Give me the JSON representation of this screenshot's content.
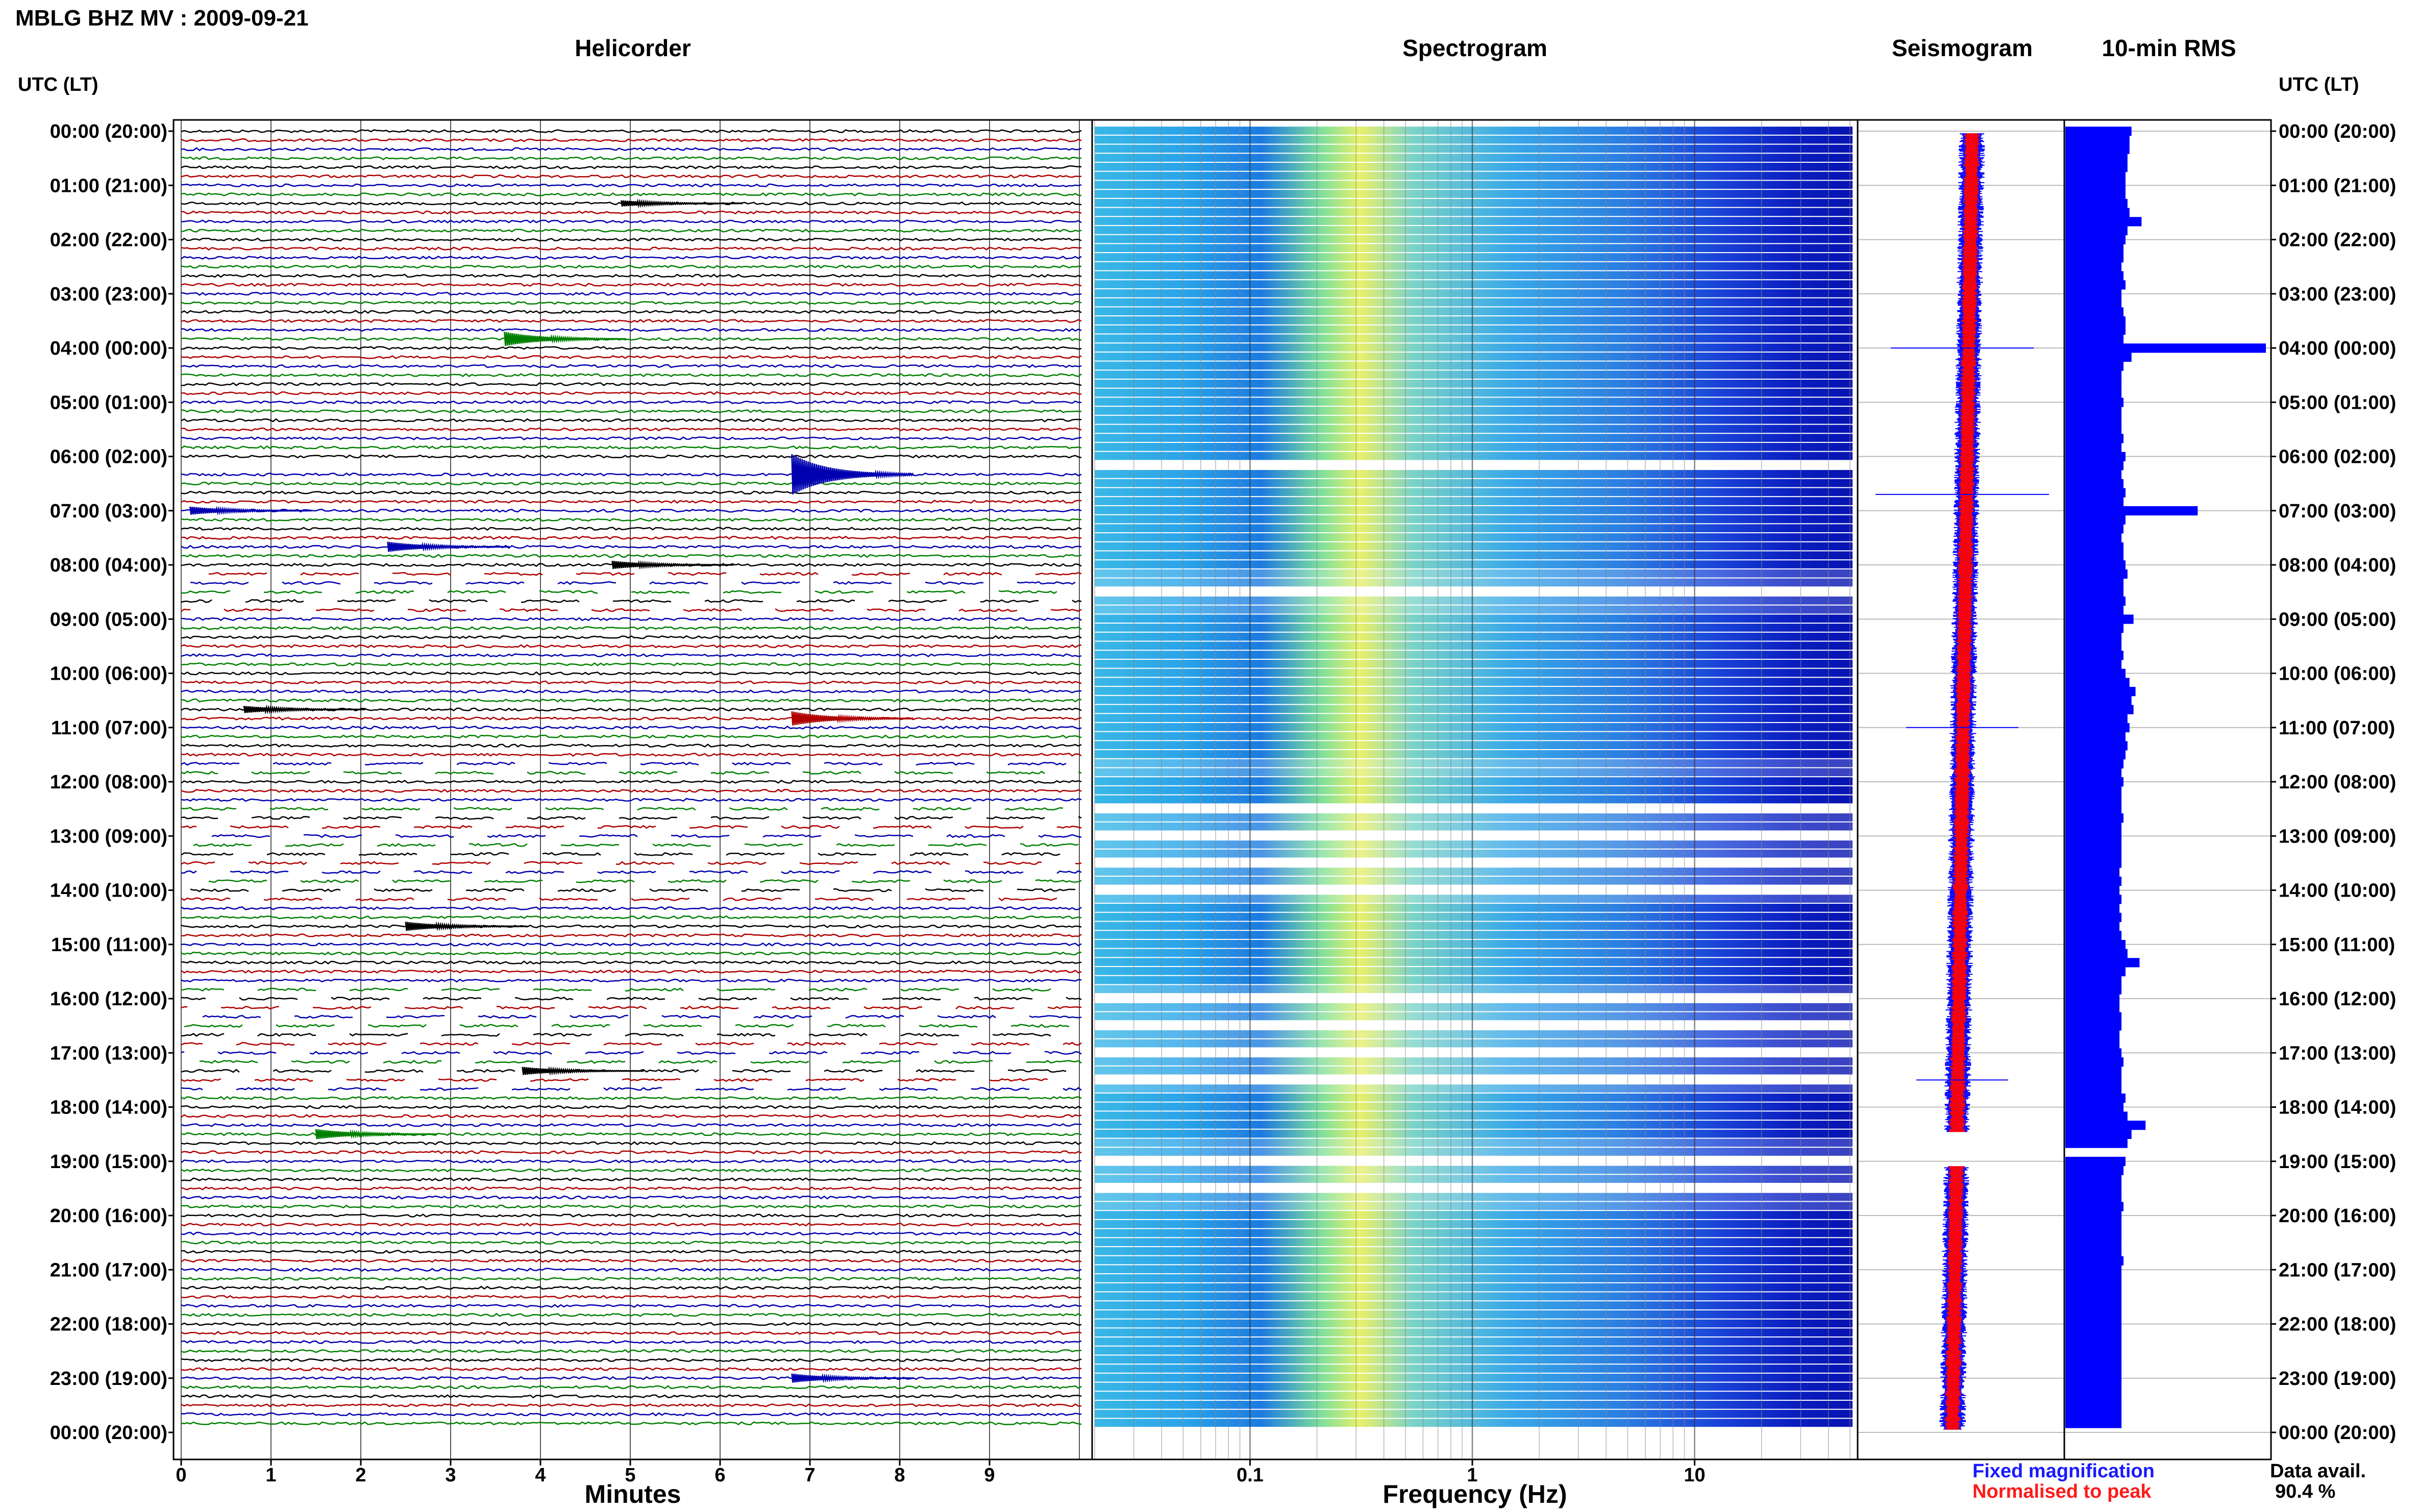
{
  "figure_title": "MBLG BHZ MV : 2009-09-21",
  "utc_label_left": "UTC (LT)",
  "utc_label_right": "UTC (LT)",
  "legend": {
    "fixed": "Fixed magnification",
    "normalised": "Normalised to peak"
  },
  "data_avail": {
    "label": "Data avail.",
    "value": "90.4 %"
  },
  "colors": {
    "trace_black": "#000000",
    "trace_red": "#b00000",
    "trace_blue": "#0000b0",
    "trace_green": "#008000",
    "rms_bar": "#0000ff",
    "seis_fixed": "#0000ff",
    "seis_norm": "#ff0000"
  },
  "chart_data": [
    {
      "type": "line",
      "title": "Helicorder",
      "xlabel": "Minutes",
      "xlim": [
        0,
        10
      ],
      "x_ticks": [
        0,
        1,
        2,
        3,
        4,
        5,
        6,
        7,
        8,
        9
      ],
      "rows": 144,
      "row_colors_cycle": [
        "black",
        "red",
        "blue",
        "green"
      ],
      "y_ticks": [
        "00:00 (20:00)",
        "01:00 (21:00)",
        "02:00 (22:00)",
        "03:00 (23:00)",
        "04:00 (00:00)",
        "05:00 (01:00)",
        "06:00 (02:00)",
        "07:00 (03:00)",
        "08:00 (04:00)",
        "09:00 (05:00)",
        "10:00 (06:00)",
        "11:00 (07:00)",
        "12:00 (08:00)",
        "13:00 (09:00)",
        "14:00 (10:00)",
        "15:00 (11:00)",
        "16:00 (12:00)",
        "17:00 (13:00)",
        "18:00 (14:00)",
        "19:00 (15:00)",
        "20:00 (16:00)",
        "21:00 (17:00)",
        "22:00 (18:00)",
        "23:00 (19:00)",
        "00:00 (20:00)"
      ],
      "events": [
        {
          "hour": 1.3,
          "minute": 4.9,
          "amp": 6
        },
        {
          "hour": 3.8,
          "minute": 3.6,
          "amp": 14
        },
        {
          "hour": 6.4,
          "minute": 6.8,
          "amp": 40
        },
        {
          "hour": 7.0,
          "minute": 0.1,
          "amp": 8
        },
        {
          "hour": 7.6,
          "minute": 2.3,
          "amp": 10
        },
        {
          "hour": 8.0,
          "minute": 4.8,
          "amp": 8
        },
        {
          "hour": 10.7,
          "minute": 0.7,
          "amp": 7
        },
        {
          "hour": 10.8,
          "minute": 6.8,
          "amp": 14
        },
        {
          "hour": 14.6,
          "minute": 2.5,
          "amp": 9
        },
        {
          "hour": 17.4,
          "minute": 3.8,
          "amp": 8
        },
        {
          "hour": 18.5,
          "minute": 1.5,
          "amp": 10
        },
        {
          "hour": 23.0,
          "minute": 6.8,
          "amp": 9
        }
      ]
    },
    {
      "type": "heatmap",
      "title": "Spectrogram",
      "xlabel": "Frequency (Hz)",
      "x_scale": "log",
      "xlim": [
        0.02,
        50
      ],
      "x_tick_labels": [
        "0.1",
        "1",
        "10"
      ],
      "x_tick_values": [
        0.1,
        1,
        10
      ],
      "colormap": "jet"
    },
    {
      "type": "line",
      "title": "Seismogram",
      "series": [
        "Fixed magnification",
        "Normalised to peak"
      ]
    },
    {
      "type": "bar",
      "title": "10-min RMS",
      "orientation": "horizontal",
      "bins": 144,
      "xlim": [
        0,
        1
      ],
      "values_relative": [
        0.33,
        0.32,
        0.32,
        0.31,
        0.31,
        0.3,
        0.3,
        0.3,
        0.31,
        0.32,
        0.38,
        0.31,
        0.3,
        0.29,
        0.29,
        0.28,
        0.29,
        0.3,
        0.28,
        0.28,
        0.29,
        0.3,
        0.3,
        0.29,
        1.0,
        0.33,
        0.29,
        0.28,
        0.28,
        0.28,
        0.29,
        0.28,
        0.28,
        0.28,
        0.29,
        0.28,
        0.3,
        0.29,
        0.28,
        0.29,
        0.3,
        0.29,
        0.66,
        0.3,
        0.29,
        0.28,
        0.29,
        0.29,
        0.3,
        0.31,
        0.29,
        0.29,
        0.3,
        0.29,
        0.34,
        0.29,
        0.28,
        0.28,
        0.29,
        0.28,
        0.3,
        0.32,
        0.35,
        0.33,
        0.34,
        0.31,
        0.32,
        0.3,
        0.31,
        0.3,
        0.29,
        0.28,
        0.29,
        0.28,
        0.28,
        0.28,
        0.29,
        0.28,
        0.28,
        0.28,
        0.28,
        0.28,
        0.27,
        0.28,
        0.27,
        0.28,
        0.27,
        0.28,
        0.27,
        0.28,
        0.3,
        0.31,
        0.37,
        0.3,
        0.28,
        0.28,
        0.27,
        0.27,
        0.28,
        0.28,
        0.27,
        0.27,
        0.28,
        0.29,
        0.28,
        0.28,
        0.28,
        0.3,
        0.29,
        0.31,
        0.4,
        0.33,
        0.31,
        0.0,
        0.3,
        0.29,
        0.28,
        0.28,
        0.28,
        0.29,
        0.28,
        0.28,
        0.28,
        0.28,
        0.28,
        0.29,
        0.28,
        0.28,
        0.28,
        0.28,
        0.28,
        0.28,
        0.28,
        0.28,
        0.28,
        0.28,
        0.28,
        0.28,
        0.28,
        0.28,
        0.28,
        0.28,
        0.28,
        0.28
      ]
    }
  ]
}
